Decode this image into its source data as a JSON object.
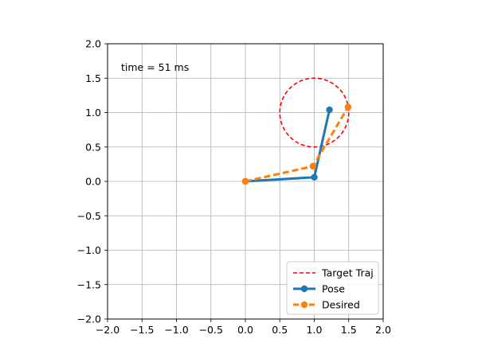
{
  "chart_data": {
    "type": "line",
    "title": "",
    "xlabel": "",
    "ylabel": "",
    "xlim": [
      -2.0,
      2.0
    ],
    "ylim": [
      -2.0,
      2.0
    ],
    "xticks": [
      -2.0,
      -1.5,
      -1.0,
      -0.5,
      0.0,
      0.5,
      1.0,
      1.5,
      2.0
    ],
    "yticks": [
      -2.0,
      -1.5,
      -1.0,
      -0.5,
      0.0,
      0.5,
      1.0,
      1.5,
      2.0
    ],
    "xtick_labels": [
      "−2.0",
      "−1.5",
      "−1.0",
      "−0.5",
      "0.0",
      "0.5",
      "1.0",
      "1.5",
      "2.0"
    ],
    "ytick_labels": [
      "−2.0",
      "−1.5",
      "−1.0",
      "−0.5",
      "0.0",
      "0.5",
      "1.0",
      "1.5",
      "2.0"
    ],
    "grid": true,
    "legend_position": "bottom-right",
    "annotation": "time = 51 ms",
    "series": [
      {
        "name": "Target Traj",
        "kind": "circle",
        "center": [
          1.0,
          1.0
        ],
        "radius": 0.5,
        "color": "#ff0000",
        "line_style": "dashed",
        "marker": "none"
      },
      {
        "name": "Pose",
        "x": [
          0.0,
          1.0,
          1.22
        ],
        "y": [
          0.0,
          0.06,
          1.04
        ],
        "color": "#1f77b4",
        "line_style": "solid",
        "marker": "circle"
      },
      {
        "name": "Desired",
        "x": [
          0.0,
          0.98,
          1.49
        ],
        "y": [
          0.0,
          0.22,
          1.08
        ],
        "color": "#ff7f0e",
        "line_style": "dashed",
        "marker": "circle"
      }
    ]
  }
}
